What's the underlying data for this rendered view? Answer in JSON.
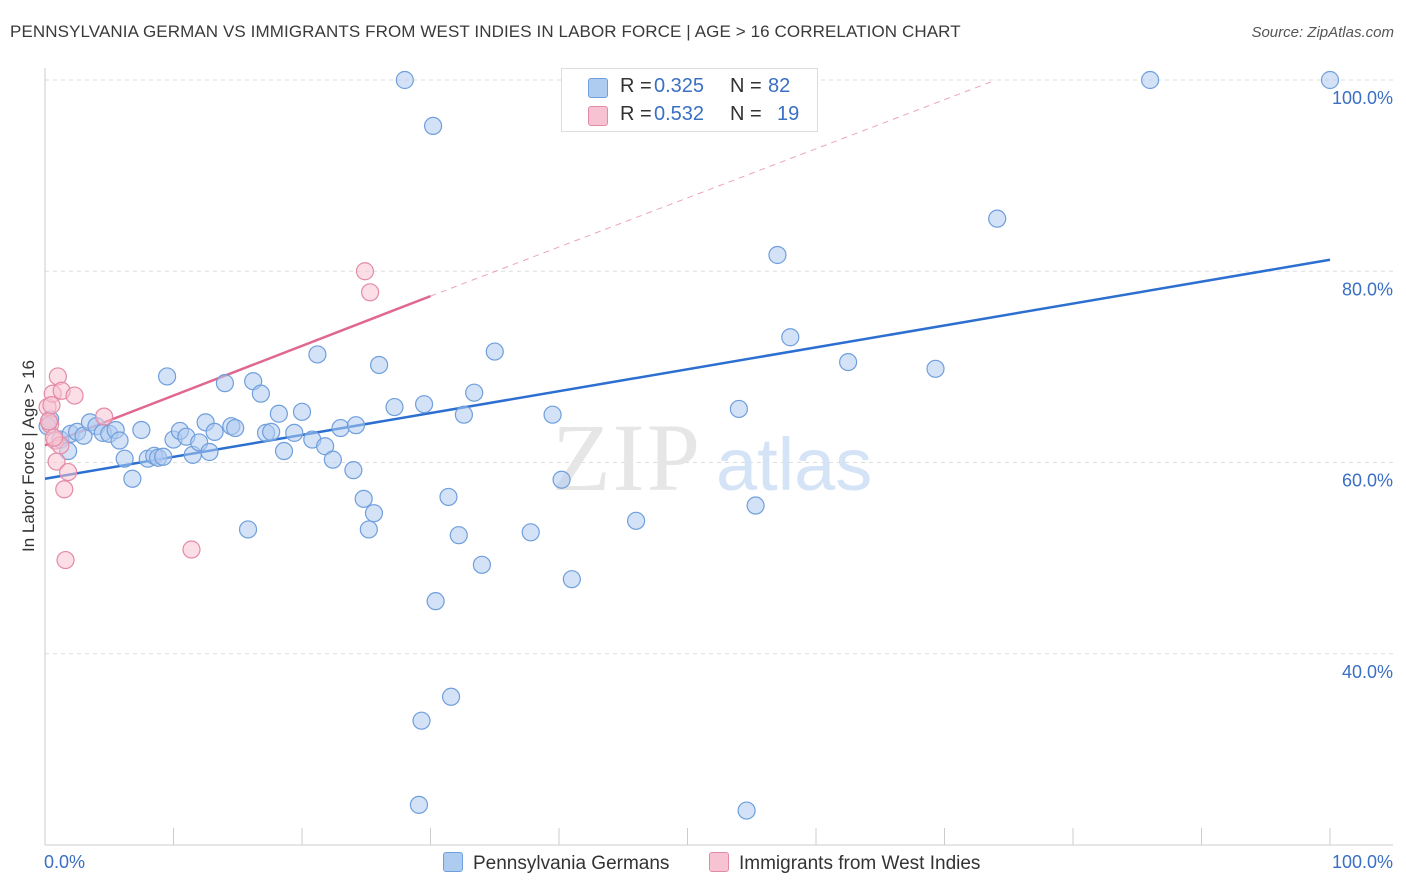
{
  "title": "PENNSYLVANIA GERMAN VS IMMIGRANTS FROM WEST INDIES IN LABOR FORCE | AGE > 16 CORRELATION CHART",
  "source": "Source: ZipAtlas.com",
  "watermark": {
    "zip": "ZIP",
    "atlas": "atlas"
  },
  "legend": {
    "series1": {
      "r_label": "R =",
      "r_value": "0.325",
      "n_label": "N =",
      "n_value": "82"
    },
    "series2": {
      "r_label": "R =",
      "r_value": "0.532",
      "n_label": "N =",
      "n_value": "19"
    }
  },
  "chart_data": {
    "type": "scatter",
    "title": "PENNSYLVANIA GERMAN VS IMMIGRANTS FROM WEST INDIES IN LABOR FORCE | AGE > 16 CORRELATION CHART",
    "xlabel": "",
    "ylabel": "In Labor Force | Age > 16",
    "x_min_label": "0.0%",
    "x_max_label": "100.0%",
    "xlim": [
      0,
      100
    ],
    "ylim": [
      20,
      100
    ],
    "y_ticks": [
      {
        "value": 40,
        "label": "40.0%"
      },
      {
        "value": 60,
        "label": "60.0%"
      },
      {
        "value": 80,
        "label": "80.0%"
      },
      {
        "value": 100,
        "label": "100.0%"
      }
    ],
    "grid": true,
    "legend_position": "top-center",
    "colors": {
      "series1_fill": "#aecbf0",
      "series1_stroke": "#6f9fdc",
      "series1_line": "#2c6fd0",
      "series2_fill": "#f7c3d2",
      "series2_stroke": "#e48aa6",
      "series2_line": "#e0688f",
      "grid": "#dddddd",
      "axis_text": "#3a6fc4"
    },
    "series": [
      {
        "name": "Pennsylvania Germans",
        "trend": {
          "x0": 0,
          "y0": 58.3,
          "x1": 100,
          "y1": 81.2
        },
        "points": [
          [
            0.4,
            64.5
          ],
          [
            1.2,
            62.4
          ],
          [
            1.8,
            61.2
          ],
          [
            2.0,
            63.0
          ],
          [
            2.5,
            63.2
          ],
          [
            3.0,
            62.8
          ],
          [
            3.5,
            64.2
          ],
          [
            4.0,
            63.8
          ],
          [
            4.5,
            63.1
          ],
          [
            5.0,
            63.0
          ],
          [
            5.5,
            63.4
          ],
          [
            5.8,
            62.3
          ],
          [
            6.2,
            60.4
          ],
          [
            6.8,
            58.3
          ],
          [
            7.5,
            63.4
          ],
          [
            8.0,
            60.4
          ],
          [
            8.5,
            60.7
          ],
          [
            8.8,
            60.5
          ],
          [
            9.2,
            60.6
          ],
          [
            9.5,
            69.0
          ],
          [
            10.0,
            62.4
          ],
          [
            10.5,
            63.3
          ],
          [
            11.0,
            62.7
          ],
          [
            11.5,
            60.8
          ],
          [
            12.0,
            62.1
          ],
          [
            12.5,
            64.2
          ],
          [
            12.8,
            61.1
          ],
          [
            13.2,
            63.2
          ],
          [
            14.0,
            68.3
          ],
          [
            14.5,
            63.8
          ],
          [
            14.8,
            63.6
          ],
          [
            15.8,
            53.0
          ],
          [
            16.2,
            68.5
          ],
          [
            16.8,
            67.2
          ],
          [
            17.2,
            63.1
          ],
          [
            17.6,
            63.2
          ],
          [
            18.2,
            65.1
          ],
          [
            18.6,
            61.2
          ],
          [
            19.4,
            63.1
          ],
          [
            20.0,
            65.3
          ],
          [
            20.8,
            62.4
          ],
          [
            21.2,
            71.3
          ],
          [
            21.8,
            61.7
          ],
          [
            22.4,
            60.3
          ],
          [
            23.0,
            63.6
          ],
          [
            24.0,
            59.2
          ],
          [
            24.2,
            63.9
          ],
          [
            24.8,
            56.2
          ],
          [
            25.2,
            53.0
          ],
          [
            25.6,
            54.7
          ],
          [
            26.0,
            70.2
          ],
          [
            27.2,
            65.8
          ],
          [
            28.0,
            100.0
          ],
          [
            29.5,
            66.1
          ],
          [
            30.2,
            95.2
          ],
          [
            30.4,
            45.5
          ],
          [
            29.3,
            33.0
          ],
          [
            29.1,
            24.2
          ],
          [
            31.6,
            35.5
          ],
          [
            31.4,
            56.4
          ],
          [
            32.2,
            52.4
          ],
          [
            32.6,
            65.0
          ],
          [
            33.4,
            67.3
          ],
          [
            34.0,
            49.3
          ],
          [
            35.0,
            71.6
          ],
          [
            37.8,
            52.7
          ],
          [
            39.5,
            65.0
          ],
          [
            40.2,
            58.2
          ],
          [
            41.0,
            47.8
          ],
          [
            46.0,
            53.9
          ],
          [
            46.8,
            95.8
          ],
          [
            54.0,
            65.6
          ],
          [
            55.3,
            55.5
          ],
          [
            54.6,
            23.6
          ],
          [
            57.0,
            81.7
          ],
          [
            58.0,
            73.1
          ],
          [
            62.5,
            70.5
          ],
          [
            69.3,
            69.8
          ],
          [
            74.1,
            85.5
          ],
          [
            86.0,
            100.0
          ],
          [
            100.0,
            100.0
          ],
          [
            0.2,
            63.8
          ]
        ]
      },
      {
        "name": "Immigrants from West Indies",
        "trend": {
          "x0": 0,
          "y0": 61.8,
          "x1": 30,
          "y1": 77.4
        },
        "trend_extension": {
          "x0": 30,
          "y0": 77.4,
          "x1": 74,
          "y1": 100
        },
        "points": [
          [
            0.2,
            65.8
          ],
          [
            0.4,
            64.0
          ],
          [
            0.6,
            67.2
          ],
          [
            0.8,
            62.3
          ],
          [
            0.9,
            60.1
          ],
          [
            1.0,
            69.0
          ],
          [
            1.2,
            61.8
          ],
          [
            1.3,
            67.5
          ],
          [
            1.5,
            57.2
          ],
          [
            1.6,
            49.8
          ],
          [
            1.8,
            59.0
          ],
          [
            2.3,
            67.0
          ],
          [
            4.6,
            64.8
          ],
          [
            11.4,
            50.9
          ],
          [
            24.9,
            80.0
          ],
          [
            25.3,
            77.8
          ],
          [
            0.3,
            64.3
          ],
          [
            0.5,
            66.0
          ],
          [
            0.7,
            62.6
          ]
        ]
      }
    ]
  }
}
